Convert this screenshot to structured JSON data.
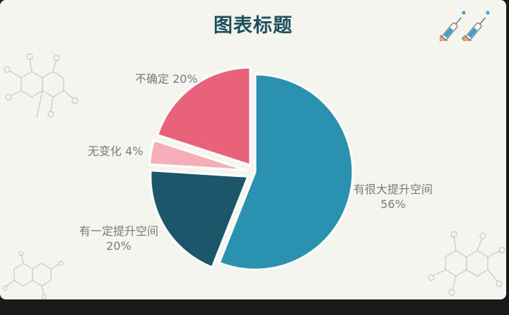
{
  "chart_data": {
    "type": "pie",
    "title": "图表标题",
    "slices": [
      {
        "category": "有很大提升空间",
        "value": 56,
        "label": "56%",
        "color": "#2b91b0",
        "explode": 0
      },
      {
        "category": "有一定提升空间",
        "value": 20,
        "label": "20%",
        "color": "#1c566b",
        "explode": 1
      },
      {
        "category": "无变化",
        "value": 4,
        "label": "4%",
        "color": "#f4adb9",
        "explode": 1
      },
      {
        "category": "不确定",
        "value": 20,
        "label": "20%",
        "color": "#e8637a",
        "explode": 1
      }
    ]
  }
}
